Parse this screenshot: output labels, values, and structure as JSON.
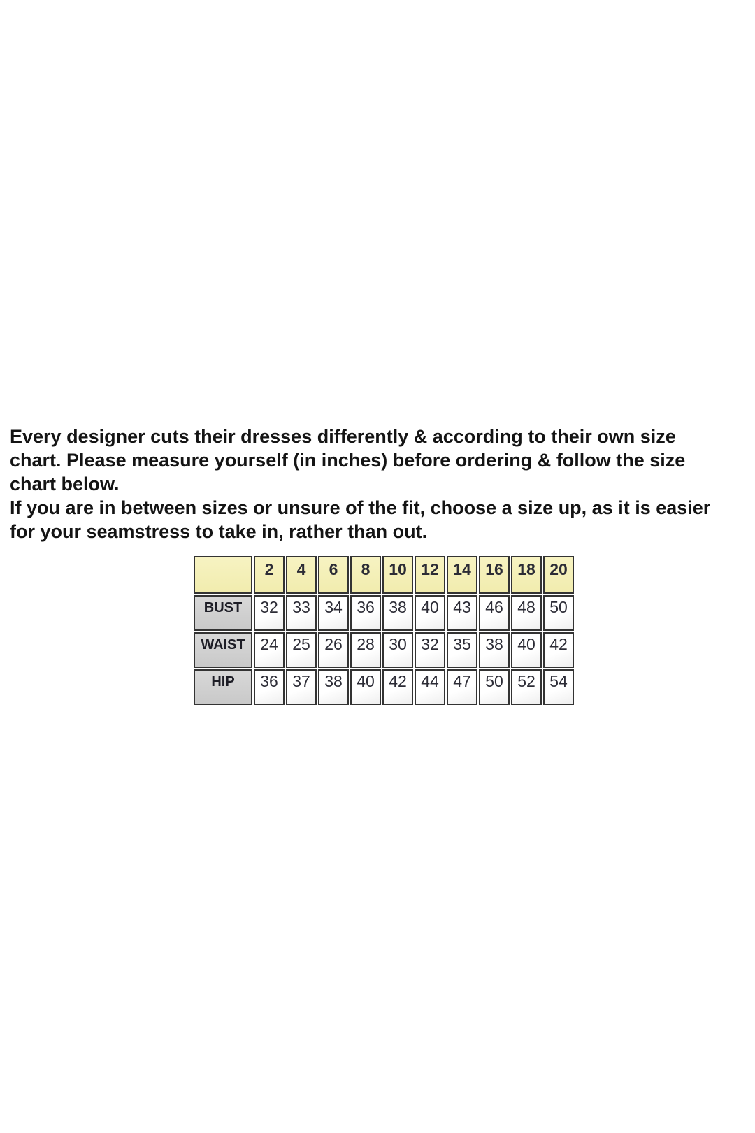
{
  "page": {
    "background": "#ffffff"
  },
  "intro": {
    "lines": [
      "Every designer cuts their dresses differently & according to their own size",
      "chart. Please measure yourself (in inches) before ordering & follow the size",
      "chart below.",
      "If you are in between sizes or unsure of the fit, choose a size up, as it is easier",
      "for your seamstress to take in, rather than out."
    ]
  },
  "size_chart": {
    "sizes": [
      "2",
      "4",
      "6",
      "8",
      "10",
      "12",
      "14",
      "16",
      "18",
      "20"
    ],
    "rows": [
      {
        "label": "BUST",
        "values": [
          "32",
          "33",
          "34",
          "36",
          "38",
          "40",
          "43",
          "46",
          "48",
          "50"
        ]
      },
      {
        "label": "WAIST",
        "values": [
          "24",
          "25",
          "26",
          "28",
          "30",
          "32",
          "35",
          "38",
          "40",
          "42"
        ]
      },
      {
        "label": "HIP",
        "values": [
          "36",
          "37",
          "38",
          "40",
          "42",
          "44",
          "47",
          "50",
          "52",
          "54"
        ]
      }
    ],
    "colors": {
      "header_bg": "#f7f3c2",
      "header_bg_dark": "#f1ecae",
      "label_bg": "#d8d8d8",
      "label_bg_dark": "#c9c9c9",
      "cell_bg": "#ffffff",
      "cell_bg_dark": "#efefef",
      "border": "#333333",
      "text": "#2c2c36"
    }
  }
}
